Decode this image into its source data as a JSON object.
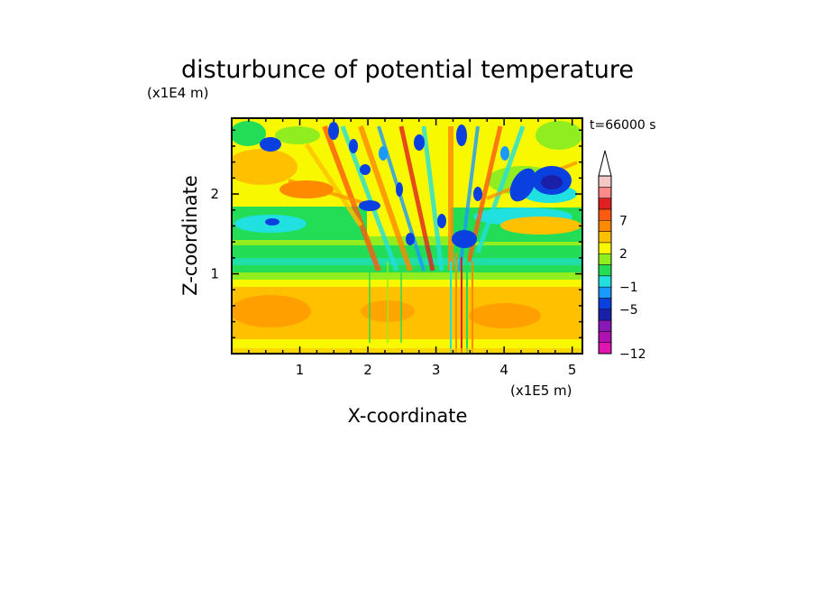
{
  "chart_data": {
    "type": "heatmap",
    "title": "disturbunce of potential temperature",
    "xlabel": "X-coordinate",
    "ylabel": "Z-coordinate",
    "x_unit": "(x1E5 m)",
    "y_unit": "(x1E4 m)",
    "time_label": "t=66000 s",
    "xlim": [
      0,
      5.15
    ],
    "ylim": [
      0,
      2.95
    ],
    "x_ticks": [
      "1",
      "2",
      "3",
      "4",
      "5"
    ],
    "y_ticks": [
      "1",
      "2"
    ],
    "x_tick_values": [
      1,
      2,
      3,
      4,
      5
    ],
    "y_tick_values": [
      1,
      2
    ],
    "colorbar": {
      "levels": [
        -12,
        -11,
        -9,
        -7,
        -5,
        -3,
        -1,
        0,
        1,
        2,
        3,
        5,
        7,
        9,
        11
      ],
      "labels": [
        "-12",
        "-5",
        "-1",
        "2",
        "7"
      ],
      "label_values": [
        -12,
        -5,
        -1,
        2,
        7
      ],
      "colors": [
        "#e015b0",
        "#b010b0",
        "#8a18b8",
        "#1a20a8",
        "#0a40e0",
        "#1a9aff",
        "#20e0e0",
        "#22dd55",
        "#90ee20",
        "#f8f800",
        "#ffc000",
        "#ff8a00",
        "#ff5a10",
        "#e02020",
        "#ff8888",
        "#f5c8c8"
      ],
      "extend": "max"
    }
  }
}
